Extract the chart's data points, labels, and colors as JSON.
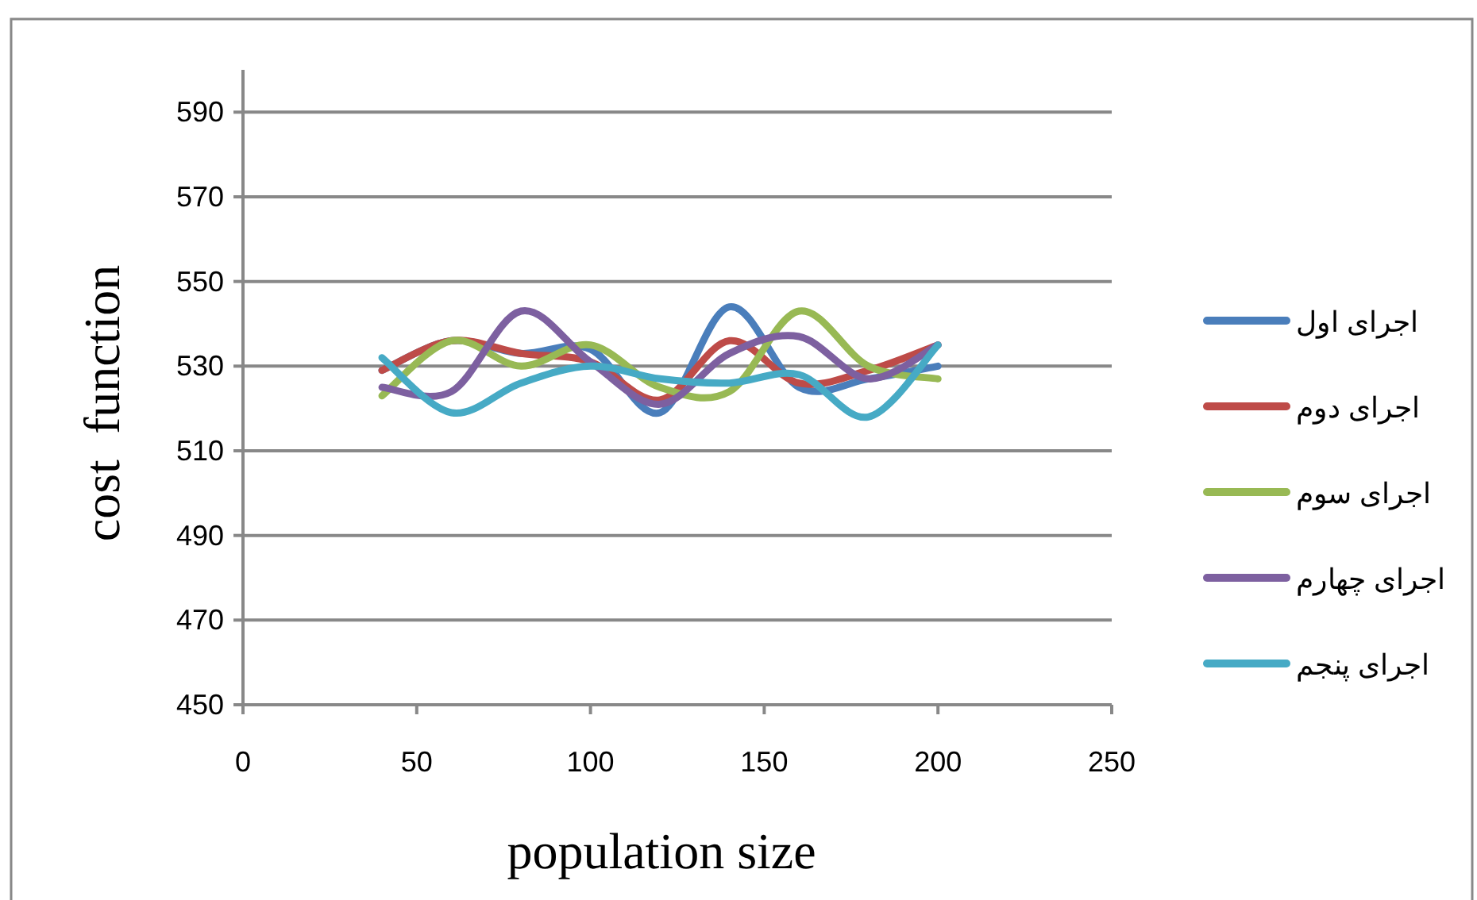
{
  "chart_data": {
    "type": "line",
    "xlabel": "population size",
    "ylabel": "cost  function",
    "xlim": [
      0,
      250
    ],
    "xticks": [
      0,
      50,
      100,
      150,
      200,
      250
    ],
    "ylim": [
      450,
      600
    ],
    "yticks": [
      450,
      470,
      490,
      510,
      530,
      550,
      570,
      590
    ],
    "grid": "y",
    "legend": "right",
    "marker": "none",
    "line_style": "solid",
    "x": [
      40,
      60,
      80,
      100,
      120,
      140,
      160,
      180,
      200
    ],
    "series": [
      {
        "name": "اجرای اول",
        "color": "#4a7ebb",
        "values": [
          529,
          536,
          533,
          534,
          519,
          544,
          525,
          527,
          530
        ]
      },
      {
        "name": "اجرای دوم",
        "color": "#be4b48",
        "values": [
          529,
          536,
          533,
          531,
          522,
          536,
          526,
          529,
          535
        ]
      },
      {
        "name": "اجرای سوم",
        "color": "#98b954",
        "values": [
          523,
          536,
          530,
          535,
          525,
          524,
          543,
          530,
          527
        ]
      },
      {
        "name": "اجرای چهارم",
        "color": "#7d60a0",
        "values": [
          525,
          524,
          543,
          531,
          521,
          533,
          537,
          527,
          535
        ]
      },
      {
        "name": "اجرای پنجم",
        "color": "#46aac5",
        "values": [
          532,
          519,
          526,
          530,
          527,
          526,
          528,
          518,
          535
        ]
      }
    ]
  }
}
